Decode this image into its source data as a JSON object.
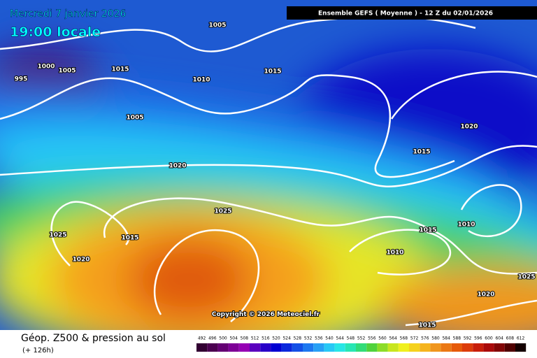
{
  "header": {
    "date": "Mercredi 7 janvier 2026",
    "time": "19:00 locale",
    "model": "Ensemble GEFS  ( Moyenne )  -  12 Z du 02/01/2026"
  },
  "isobars": [
    "1005",
    "1000",
    "1005",
    "995",
    "1015",
    "1010",
    "1015",
    "1005",
    "1020",
    "1015",
    "1020",
    "1025",
    "1025",
    "1015",
    "1020",
    "1015",
    "1010",
    "1010",
    "1025",
    "1020",
    "1015"
  ],
  "copyright": "Copyright © 2026 Meteociel.fr",
  "footer": {
    "title": "Géop. Z500 & pression au sol",
    "lead": "(+ 126h)"
  },
  "scale": [
    {
      "label": "492",
      "color": "#320032"
    },
    {
      "label": "496",
      "color": "#4b0050"
    },
    {
      "label": "500",
      "color": "#640073"
    },
    {
      "label": "504",
      "color": "#7d0096"
    },
    {
      "label": "508",
      "color": "#9600b4"
    },
    {
      "label": "512",
      "color": "#5a00be"
    },
    {
      "label": "516",
      "color": "#2800c8"
    },
    {
      "label": "520",
      "color": "#0000d2"
    },
    {
      "label": "524",
      "color": "#0a28dc"
    },
    {
      "label": "528",
      "color": "#1450e6"
    },
    {
      "label": "532",
      "color": "#1e78f0"
    },
    {
      "label": "536",
      "color": "#28a0f5"
    },
    {
      "label": "540",
      "color": "#28c8f5"
    },
    {
      "label": "544",
      "color": "#28e6e6"
    },
    {
      "label": "548",
      "color": "#28e6b4"
    },
    {
      "label": "552",
      "color": "#32dc78"
    },
    {
      "label": "556",
      "color": "#50d23c"
    },
    {
      "label": "560",
      "color": "#8cdc28"
    },
    {
      "label": "564",
      "color": "#c8e61e"
    },
    {
      "label": "568",
      "color": "#f0f01e"
    },
    {
      "label": "572",
      "color": "#f5d21e"
    },
    {
      "label": "576",
      "color": "#f5b41e"
    },
    {
      "label": "580",
      "color": "#f0961e"
    },
    {
      "label": "584",
      "color": "#eb7814"
    },
    {
      "label": "588",
      "color": "#e65a0a"
    },
    {
      "label": "592",
      "color": "#dc3c0a"
    },
    {
      "label": "596",
      "color": "#c81e0a"
    },
    {
      "label": "600",
      "color": "#aa0a0a"
    },
    {
      "label": "604",
      "color": "#820505"
    },
    {
      "label": "608",
      "color": "#500000"
    },
    {
      "label": "612",
      "color": "#140000"
    }
  ]
}
